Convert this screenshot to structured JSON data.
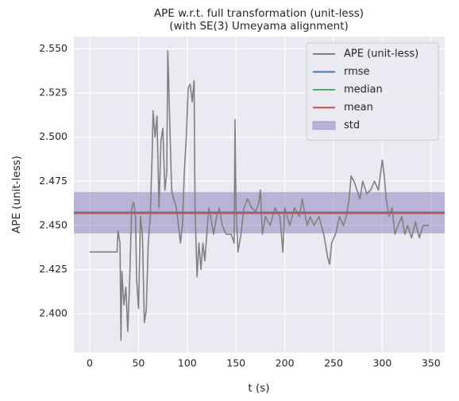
{
  "chart_data": {
    "type": "line",
    "title": "APE w.r.t. full transformation (unit-less)",
    "subtitle": "(with SE(3) Umeyama alignment)",
    "x_label": "t (s)",
    "y_label": "APE (unit-less)",
    "x": [
      0,
      10,
      20,
      28,
      29,
      31,
      32,
      33,
      35,
      37,
      39,
      41,
      43,
      45,
      47,
      48,
      50,
      52,
      54,
      56,
      58,
      60,
      62,
      64,
      65,
      67,
      69,
      71,
      73,
      75,
      77,
      79,
      80,
      82,
      84,
      86,
      88,
      90,
      93,
      95,
      97,
      99,
      101,
      103,
      105,
      107,
      108,
      110,
      112,
      114,
      116,
      118,
      120,
      122,
      124,
      127,
      130,
      133,
      136,
      140,
      145,
      148,
      149,
      150,
      152,
      155,
      158,
      162,
      166,
      170,
      173,
      175,
      177,
      180,
      185,
      190,
      195,
      198,
      200,
      205,
      210,
      215,
      218,
      220,
      223,
      226,
      230,
      235,
      240,
      244,
      246,
      248,
      252,
      256,
      260,
      263,
      266,
      268,
      271,
      274,
      277,
      280,
      284,
      288,
      292,
      296,
      300,
      302,
      304,
      307,
      310,
      313,
      316,
      320,
      323,
      326,
      330,
      334,
      338,
      342,
      348
    ],
    "series": [
      {
        "name": "APE (unit-less)",
        "color": "#808080",
        "values": [
          2.435,
          2.435,
          2.435,
          2.435,
          2.447,
          2.44,
          2.385,
          2.424,
          2.405,
          2.415,
          2.39,
          2.42,
          2.46,
          2.463,
          2.455,
          2.42,
          2.403,
          2.455,
          2.445,
          2.395,
          2.402,
          2.44,
          2.455,
          2.49,
          2.515,
          2.5,
          2.512,
          2.46,
          2.498,
          2.505,
          2.47,
          2.48,
          2.549,
          2.51,
          2.47,
          2.465,
          2.462,
          2.455,
          2.44,
          2.45,
          2.48,
          2.5,
          2.528,
          2.53,
          2.52,
          2.532,
          2.46,
          2.421,
          2.44,
          2.425,
          2.44,
          2.43,
          2.445,
          2.46,
          2.455,
          2.445,
          2.455,
          2.46,
          2.45,
          2.445,
          2.445,
          2.44,
          2.51,
          2.46,
          2.435,
          2.445,
          2.46,
          2.465,
          2.46,
          2.458,
          2.462,
          2.47,
          2.445,
          2.455,
          2.45,
          2.46,
          2.455,
          2.435,
          2.46,
          2.45,
          2.46,
          2.455,
          2.465,
          2.458,
          2.45,
          2.455,
          2.45,
          2.455,
          2.445,
          2.432,
          2.428,
          2.44,
          2.445,
          2.455,
          2.45,
          2.455,
          2.465,
          2.478,
          2.475,
          2.47,
          2.465,
          2.475,
          2.468,
          2.47,
          2.475,
          2.47,
          2.487,
          2.478,
          2.465,
          2.455,
          2.46,
          2.445,
          2.45,
          2.455,
          2.445,
          2.45,
          2.443,
          2.452,
          2.443,
          2.45,
          2.45
        ]
      }
    ],
    "stats": [
      {
        "name": "rmse",
        "color": "#4c72b0",
        "value": 2.4574
      },
      {
        "name": "median",
        "color": "#55a868",
        "value": 2.4568
      },
      {
        "name": "mean",
        "color": "#c44e52",
        "value": 2.4572
      }
    ],
    "std": {
      "name": "std",
      "color": "#8172b2",
      "value": 0.0117
    },
    "xlim": [
      -16.3,
      364
    ],
    "ylim": [
      2.378,
      2.557
    ],
    "xticks": [
      0,
      50,
      100,
      150,
      200,
      250,
      300,
      350
    ],
    "yticks": [
      {
        "value": 2.4,
        "label": "2.400"
      },
      2.425,
      {
        "value": 2.45,
        "label": "2.450"
      },
      2.475,
      {
        "value": 2.5,
        "label": "2.500"
      },
      2.525,
      {
        "value": 2.55,
        "label": "2.550"
      }
    ],
    "grid": true,
    "legend": "upper right"
  }
}
